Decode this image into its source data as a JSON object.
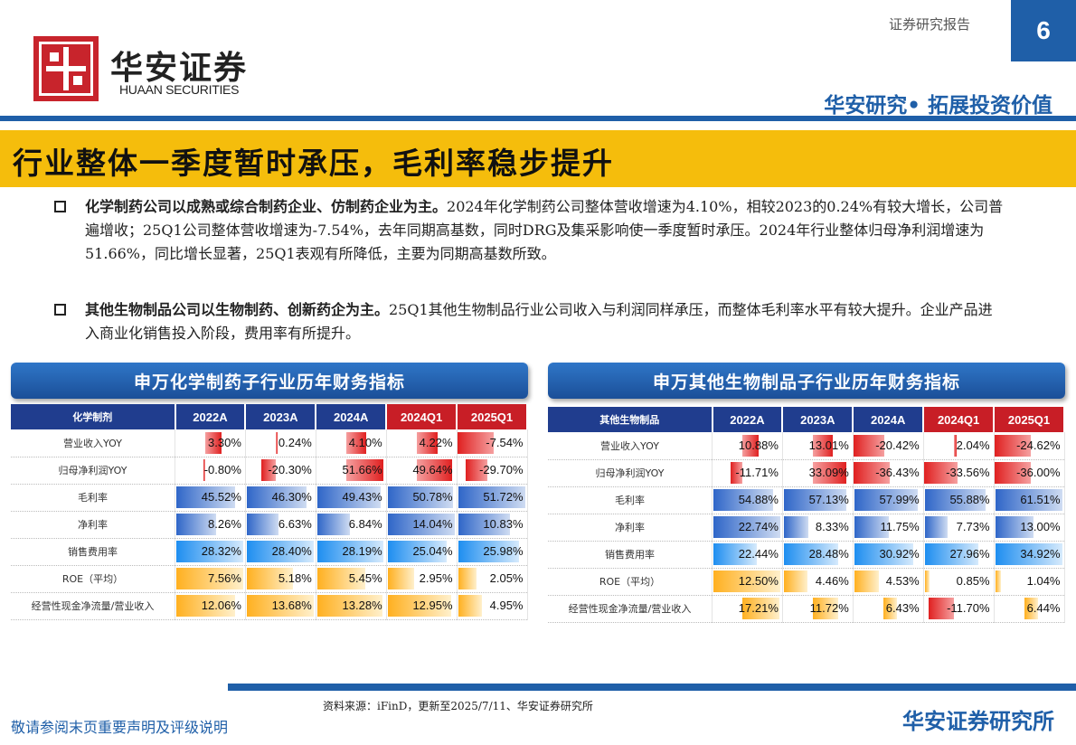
{
  "header": {
    "logo_text_cn": "华安证券",
    "logo_text_en": "HUAAN SECURITIES",
    "report_label": "证券研究报告",
    "page_number": "6",
    "slogan": "华安研究• 拓展投资价值"
  },
  "title": "行业整体一季度暂时承压，毛利率稳步提升",
  "bullets": [
    {
      "bold": "化学制药公司以成熟或综合制药企业、仿制药企业为主。",
      "text": "2024年化学制药公司整体营收增速为4.10%，相较2023的0.24%有较大增长，公司普遍增收；25Q1公司整体营收增速为-7.54%，去年同期高基数，同时DRG及集采影响使一季度暂时承压。2024年行业整体归母净利润增速为51.66%，同比增长显著，25Q1表观有所降低，主要为同期高基数所致。"
    },
    {
      "bold": "其他生物制品公司以生物制药、创新药企为主。",
      "text": "25Q1其他生物制品行业公司收入与利润同样承压，而整体毛利率水平有较大提升。企业产品进入商业化销售投入阶段，费用率有所提升。"
    }
  ],
  "colors": {
    "brand_blue": "#1f5fa8",
    "brand_red": "#c8242c",
    "title_yellow": "#f5bd0c",
    "header_dark": "#203d8e",
    "quarter_red": "#c81e26"
  },
  "tables": [
    {
      "title": "申万化学制药子行业历年财务指标",
      "corner": "化学制剂",
      "columns": [
        "2022A",
        "2023A",
        "2024A",
        "2024Q1",
        "2025Q1"
      ],
      "rows": [
        {
          "label": "营业收入YOY",
          "style": "red",
          "values": [
            "3.30%",
            "0.24%",
            "4.10%",
            "4.22%",
            "-7.54%"
          ],
          "nums": [
            3.3,
            0.24,
            4.1,
            4.22,
            -7.54
          ]
        },
        {
          "label": "归母净利润YOY",
          "style": "red",
          "values": [
            "-0.80%",
            "-20.30%",
            "51.66%",
            "49.64%",
            "-29.70%"
          ],
          "nums": [
            -0.8,
            -20.3,
            51.66,
            49.64,
            -29.7
          ]
        },
        {
          "label": "毛利率",
          "style": "blue",
          "values": [
            "45.52%",
            "46.30%",
            "49.43%",
            "50.78%",
            "51.72%"
          ],
          "nums": [
            45.52,
            46.3,
            49.43,
            50.78,
            51.72
          ]
        },
        {
          "label": "净利率",
          "style": "blue",
          "values": [
            "8.26%",
            "6.63%",
            "6.84%",
            "14.04%",
            "10.83%"
          ],
          "nums": [
            8.26,
            6.63,
            6.84,
            14.04,
            10.83
          ]
        },
        {
          "label": "销售费用率",
          "style": "cyan",
          "values": [
            "28.32%",
            "28.40%",
            "28.19%",
            "25.04%",
            "25.98%"
          ],
          "nums": [
            28.32,
            28.4,
            28.19,
            25.04,
            25.98
          ]
        },
        {
          "label": "ROE（平均）",
          "style": "orange",
          "values": [
            "7.56%",
            "5.18%",
            "5.45%",
            "2.95%",
            "2.05%"
          ],
          "nums": [
            7.56,
            5.18,
            5.45,
            2.95,
            2.05
          ]
        },
        {
          "label": "经营性现金净流量/营业收入",
          "style": "orange",
          "values": [
            "12.06%",
            "13.68%",
            "13.28%",
            "12.95%",
            "4.95%"
          ],
          "nums": [
            12.06,
            13.68,
            13.28,
            12.95,
            4.95
          ]
        }
      ]
    },
    {
      "title": "申万其他生物制品子行业历年财务指标",
      "corner": "其他生物制品",
      "columns": [
        "2022A",
        "2023A",
        "2024A",
        "2024Q1",
        "2025Q1"
      ],
      "rows": [
        {
          "label": "营业收入YOY",
          "style": "red",
          "values": [
            "10.88%",
            "13.01%",
            "-20.42%",
            "2.04%",
            "-24.62%"
          ],
          "nums": [
            10.88,
            13.01,
            -20.42,
            2.04,
            -24.62
          ]
        },
        {
          "label": "归母净利润YOY",
          "style": "red",
          "values": [
            "-11.71%",
            "33.09%",
            "-36.43%",
            "-33.56%",
            "-36.00%"
          ],
          "nums": [
            -11.71,
            33.09,
            -36.43,
            -33.56,
            -36.0
          ]
        },
        {
          "label": "毛利率",
          "style": "blue",
          "values": [
            "54.88%",
            "57.13%",
            "57.99%",
            "55.88%",
            "61.51%"
          ],
          "nums": [
            54.88,
            57.13,
            57.99,
            55.88,
            61.51
          ]
        },
        {
          "label": "净利率",
          "style": "blue",
          "values": [
            "22.74%",
            "8.33%",
            "11.75%",
            "7.73%",
            "13.00%"
          ],
          "nums": [
            22.74,
            8.33,
            11.75,
            7.73,
            13.0
          ]
        },
        {
          "label": "销售费用率",
          "style": "cyan",
          "values": [
            "22.44%",
            "28.48%",
            "30.92%",
            "27.96%",
            "34.92%"
          ],
          "nums": [
            22.44,
            28.48,
            30.92,
            27.96,
            34.92
          ]
        },
        {
          "label": "ROE（平均）",
          "style": "orange",
          "values": [
            "12.50%",
            "4.46%",
            "4.53%",
            "0.85%",
            "1.04%"
          ],
          "nums": [
            12.5,
            4.46,
            4.53,
            0.85,
            1.04
          ]
        },
        {
          "label": "经营性现金净流量/营业收入",
          "style": "orange_red",
          "values": [
            "17.21%",
            "11.72%",
            "6.43%",
            "-11.70%",
            "6.44%"
          ],
          "nums": [
            17.21,
            11.72,
            6.43,
            -11.7,
            6.44
          ]
        }
      ]
    }
  ],
  "footer": {
    "source": "资料来源：iFinD，更新至2025/7/11、华安证券研究所",
    "disclaimer": "敬请参阅末页重要声明及评级说明",
    "institute": "华安证券研究所"
  }
}
